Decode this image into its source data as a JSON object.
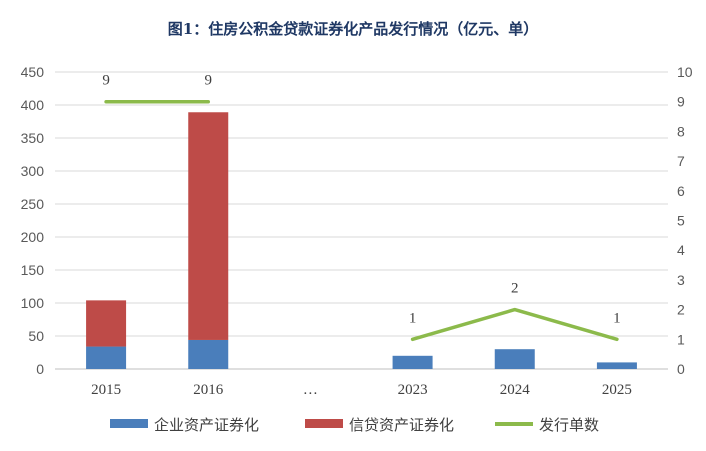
{
  "chart_data": {
    "type": "bar",
    "title": "图1：住房公积金贷款证券化产品发行情况（亿元、单）",
    "categories": [
      "2015",
      "2016",
      "…",
      "2023",
      "2024",
      "2025"
    ],
    "series": [
      {
        "name": "企业资产证券化",
        "kind": "bar",
        "stacked": true,
        "axis": "left",
        "color": "#4a7ebb",
        "values": [
          34,
          44,
          null,
          20,
          30,
          10
        ]
      },
      {
        "name": "信贷资产证券化",
        "kind": "bar",
        "stacked": true,
        "axis": "left",
        "color": "#be4b48",
        "values": [
          70,
          345,
          null,
          0,
          0,
          0
        ]
      },
      {
        "name": "发行单数",
        "kind": "line",
        "axis": "right",
        "color": "#8cba4b",
        "segments": [
          [
            0,
            1
          ],
          [
            3,
            4,
            5
          ]
        ],
        "values": [
          9,
          9,
          null,
          1,
          2,
          1
        ],
        "data_labels": [
          "9",
          "9",
          "",
          "1",
          "2",
          "1"
        ]
      }
    ],
    "y_left": {
      "min": 0,
      "max": 450,
      "step": 50,
      "ticks": [
        "0",
        "50",
        "100",
        "150",
        "200",
        "250",
        "300",
        "350",
        "400",
        "450"
      ]
    },
    "y_right": {
      "min": 0,
      "max": 10,
      "step": 1,
      "ticks": [
        "0",
        "1",
        "2",
        "3",
        "4",
        "5",
        "6",
        "7",
        "8",
        "9",
        "10"
      ]
    },
    "grid": true,
    "legend_position": "bottom"
  }
}
